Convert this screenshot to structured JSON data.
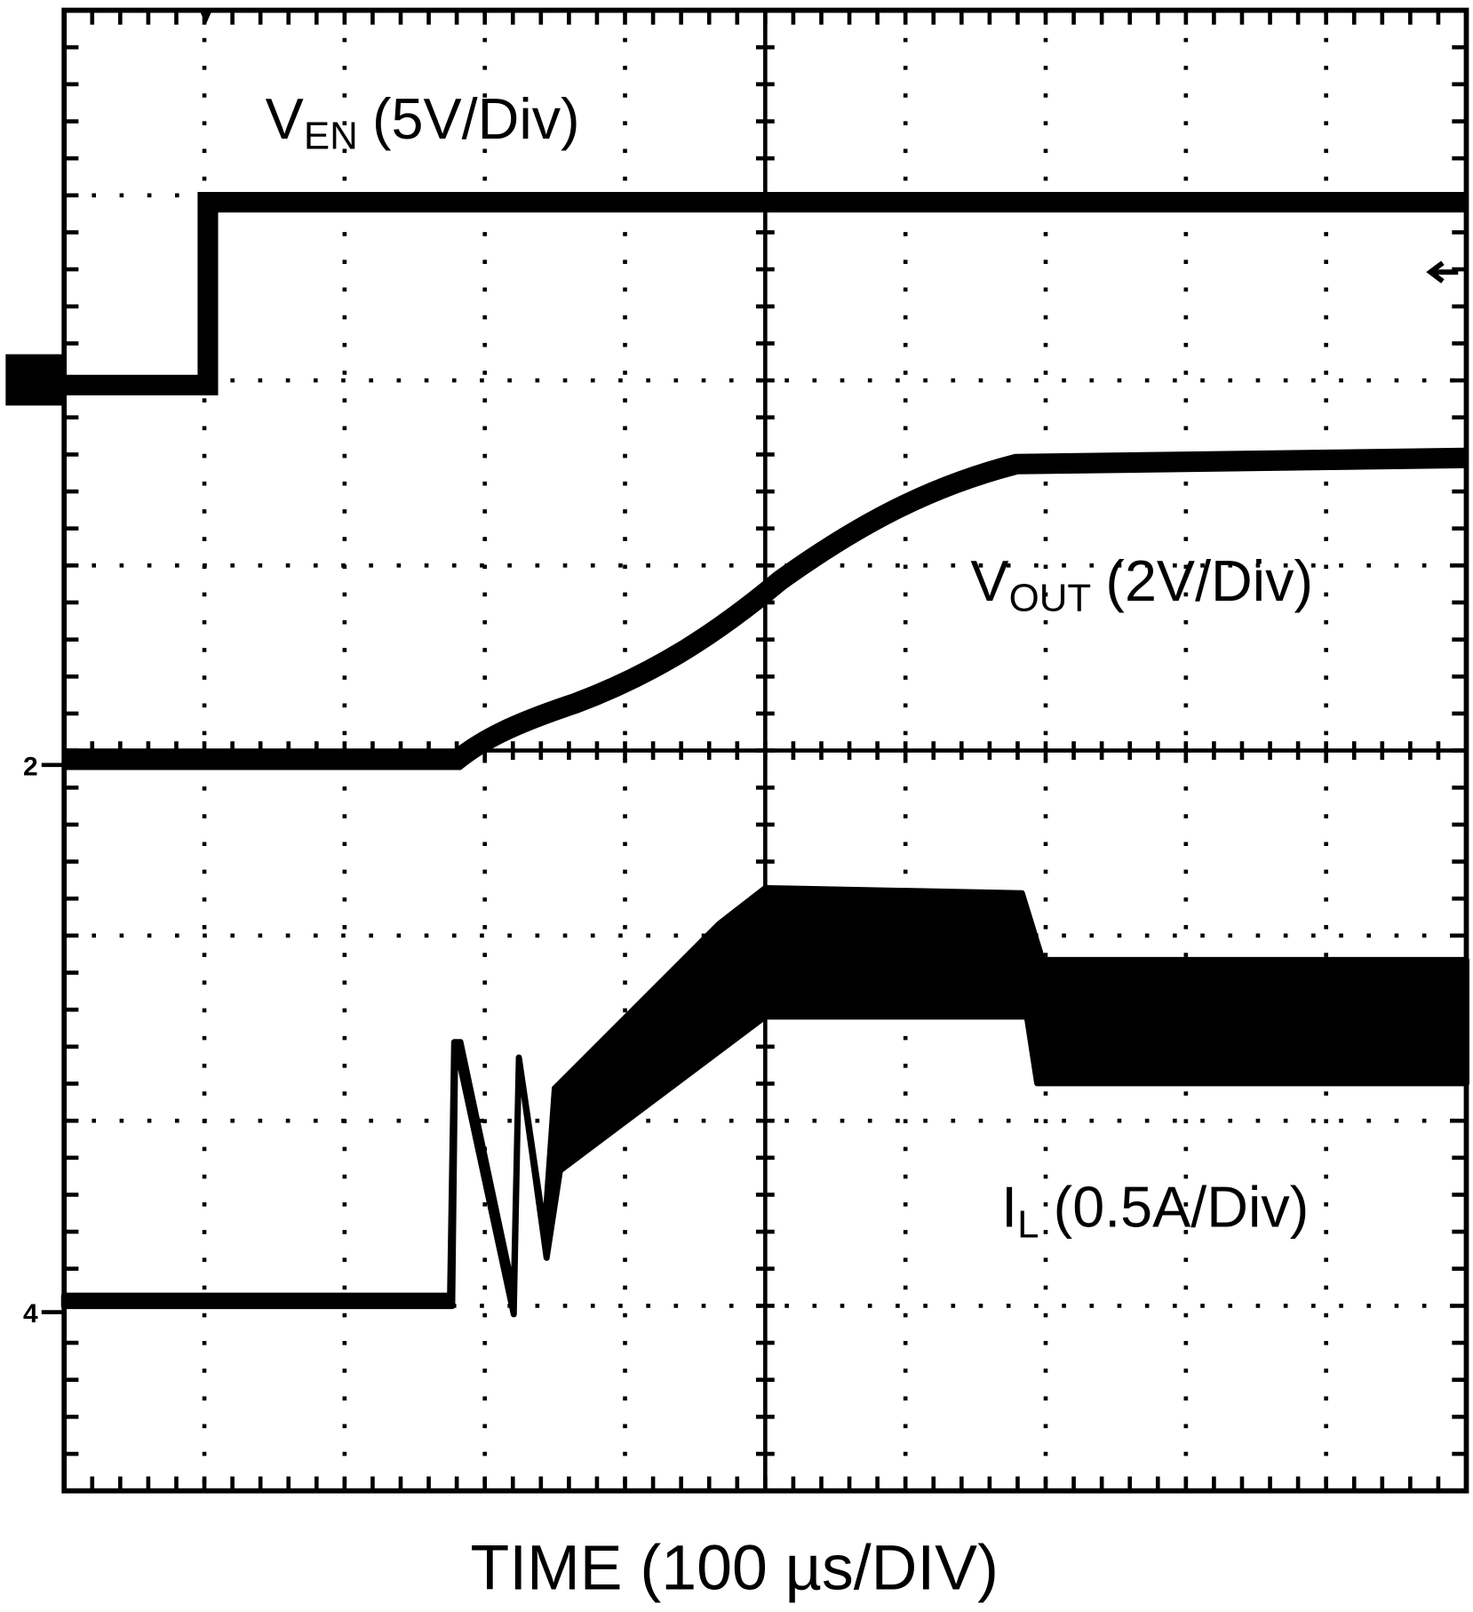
{
  "traces": [
    {
      "symbol": "V",
      "subscript": "EN",
      "scale": "(5V/Div)"
    },
    {
      "symbol": "V",
      "subscript": "OUT",
      "scale": "(2V/Div)"
    },
    {
      "symbol": "I",
      "subscript": "L",
      "scale": "(0.5A/Div)"
    }
  ],
  "x_label": "TIME (100 µs/DIV)",
  "channel_markers": [
    "2",
    "4"
  ]
}
